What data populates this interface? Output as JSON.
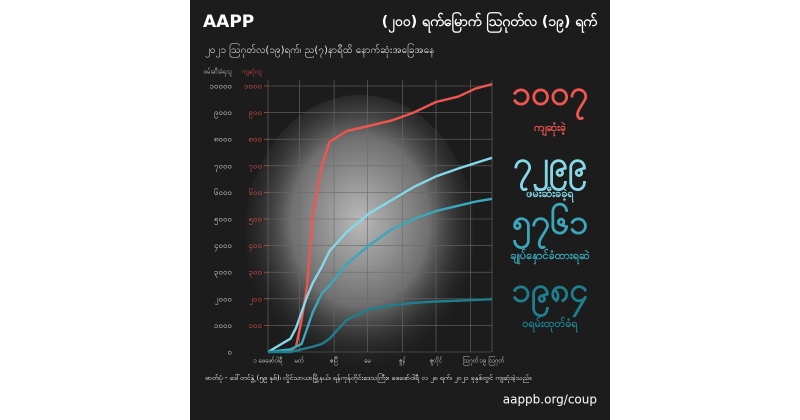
{
  "chart_data": {
    "type": "line",
    "brand": "AAPP",
    "title": "(၂၀၀) ရက်မြောက် ဩဂုတ်လ (၁၉) ရက်",
    "subtitle": "၂၀၂၁ ဩဂုတ်လ(၁၉)ရက်၊ ည(၇)နာရီထိ နောက်ဆုံးအခြေအနေ",
    "y_label": "ဖမ်းဆီးခံရသူ",
    "y2_label": "ကျဆုံးသူ",
    "caption": "ဓာတ်ပုံ - ဒေါ်တင်နွဲ့ (၅၉ နှစ်)၊ လှိုင်သာယာမြို့နယ်၊ ရန်ကုန်တိုင်းဒေသကြီး။ ဖေဖော်ဝါရီ လ ၂၈ ရက်၊ ၂၀၂၁ ခုနှစ်တွင် ကျဆုံးခဲ့သည်။",
    "url": "aappb.org/coup",
    "x": [
      0,
      20,
      25,
      30,
      35,
      40,
      48,
      55,
      70,
      90,
      110,
      130,
      150,
      170,
      185,
      200
    ],
    "xlim": [
      0,
      200
    ],
    "xticks": [
      {
        "value": 0,
        "label": "၁ ဖေဖော်ဝါရီ"
      },
      {
        "value": 28,
        "label": "မတ်"
      },
      {
        "value": 59,
        "label": "ဧပြီ"
      },
      {
        "value": 89,
        "label": "မေ"
      },
      {
        "value": 120,
        "label": "ဇွန်"
      },
      {
        "value": 150,
        "label": "ဇူလိုင်"
      },
      {
        "value": 181,
        "label": "ဩဂုတ်"
      },
      {
        "value": 200,
        "label": "၁၉ ဩဂုတ်"
      }
    ],
    "ylim": [
      0,
      10000
    ],
    "yticks": [
      {
        "value": 0,
        "label": "၀"
      },
      {
        "value": 1000,
        "label": "၁၀၀၀"
      },
      {
        "value": 2000,
        "label": "၂၀၀၀"
      },
      {
        "value": 3000,
        "label": "၃၀၀၀"
      },
      {
        "value": 4000,
        "label": "၄၀၀၀"
      },
      {
        "value": 5000,
        "label": "၅၀၀၀"
      },
      {
        "value": 6000,
        "label": "၆၀၀၀"
      },
      {
        "value": 7000,
        "label": "၇၀၀၀"
      },
      {
        "value": 8000,
        "label": "၈၀၀၀"
      },
      {
        "value": 9000,
        "label": "၉၀၀၀"
      },
      {
        "value": 10000,
        "label": "၁၀၀၀၀"
      }
    ],
    "y2lim": [
      0,
      1000
    ],
    "y2ticks": [
      {
        "value": 100,
        "label": "၁၀၀"
      },
      {
        "value": 200,
        "label": "၂၀၀"
      },
      {
        "value": 300,
        "label": "၃၀၀"
      },
      {
        "value": 400,
        "label": "၄၀၀"
      },
      {
        "value": 500,
        "label": "၅၀၀"
      },
      {
        "value": 600,
        "label": "၆၀၀"
      },
      {
        "value": 700,
        "label": "၇၀၀"
      },
      {
        "value": 800,
        "label": "၈၀၀"
      },
      {
        "value": 900,
        "label": "၉၀၀"
      },
      {
        "value": 1000,
        "label": "၁၀၀၀"
      }
    ],
    "grid": true,
    "series": [
      {
        "name": "ကျဆုံးခဲ့",
        "color": "#f0554f",
        "axis": "y2",
        "values": [
          0,
          5,
          20,
          120,
          250,
          520,
          700,
          790,
          830,
          850,
          870,
          900,
          940,
          960,
          990,
          1007
        ],
        "value_labels": [
          null,
          null,
          null,
          null,
          null,
          null,
          null,
          null,
          null,
          null,
          null,
          null,
          null,
          null,
          null,
          "၁၀၀၇"
        ]
      },
      {
        "name": "ဖမ်းဆီးခံခဲ့ရ",
        "color": "#84d8e8",
        "values": [
          0,
          500,
          900,
          1500,
          2100,
          2600,
          3200,
          3800,
          4500,
          5200,
          5700,
          6200,
          6600,
          6900,
          7100,
          7299
        ],
        "value_labels": [
          null,
          null,
          null,
          null,
          null,
          null,
          null,
          null,
          null,
          null,
          null,
          null,
          null,
          null,
          null,
          "၇၂၉၉"
        ]
      },
      {
        "name": "ချုပ်နှောင်ခံထားရဆဲ",
        "color": "#3aa7ba",
        "values": [
          0,
          100,
          200,
          300,
          900,
          1500,
          2200,
          2500,
          3300,
          4000,
          4600,
          5000,
          5300,
          5500,
          5650,
          5761
        ],
        "value_labels": [
          null,
          null,
          null,
          null,
          null,
          null,
          null,
          null,
          null,
          null,
          null,
          null,
          null,
          null,
          null,
          "၅၇၆၁"
        ]
      },
      {
        "name": "ဝရမ်းထုတ်ခံရ",
        "color": "#1f7e8e",
        "values": [
          0,
          0,
          50,
          100,
          150,
          200,
          300,
          500,
          1200,
          1600,
          1750,
          1850,
          1900,
          1930,
          1960,
          1984
        ],
        "value_labels": [
          null,
          null,
          null,
          null,
          null,
          null,
          null,
          null,
          null,
          null,
          null,
          null,
          null,
          null,
          null,
          "၁၉၈၄"
        ]
      }
    ]
  }
}
